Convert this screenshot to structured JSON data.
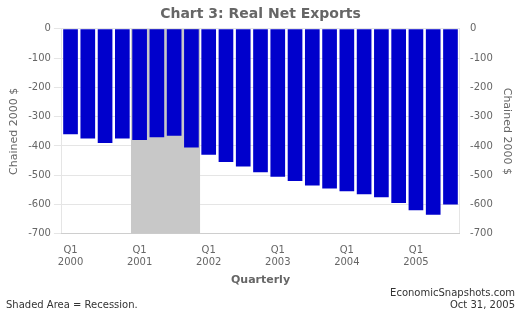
{
  "chart_data": {
    "type": "bar",
    "title": "Chart 3: Real Net Exports",
    "xlabel": "Quarterly",
    "ylabel": "Chained 2000 $",
    "y2label": "Chained 2000 $",
    "categories": [
      "Q1\n2000",
      null,
      null,
      null,
      "Q1\n2001",
      null,
      null,
      null,
      "Q1\n2002",
      null,
      null,
      null,
      "Q1\n2003",
      null,
      null,
      null,
      "Q1\n2004",
      null,
      null,
      null,
      "Q1\n2005",
      null,
      null
    ],
    "values": [
      -360,
      -375,
      -390,
      -375,
      -380,
      -370,
      -365,
      -405,
      -430,
      -455,
      -470,
      -490,
      -505,
      -520,
      -535,
      -545,
      -555,
      -565,
      -575,
      -595,
      -620,
      -635,
      -600
    ],
    "color": "#0000CC",
    "ylim": [
      -700,
      0
    ],
    "yticks": [
      0,
      -100,
      -200,
      -300,
      -400,
      -500,
      -600,
      -700
    ],
    "y2lim": [
      -700,
      0
    ],
    "y2ticks": [
      0,
      -100,
      -200,
      -300,
      -400,
      -500,
      -600,
      -700
    ],
    "grid": true,
    "shaded_range": {
      "first": 4,
      "last": 7,
      "color": "#C8C8C8"
    },
    "annotations": [
      "Shaded Area = Recession.",
      "EconomicSnapshots.com\nOct 31, 2005"
    ]
  }
}
